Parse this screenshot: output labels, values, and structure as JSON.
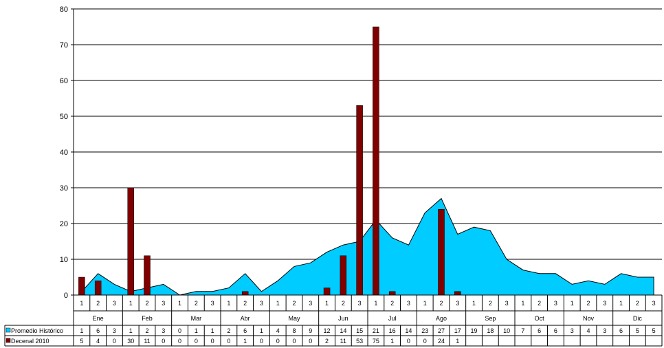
{
  "chart_data": {
    "type": "bar",
    "ylim": [
      0,
      80
    ],
    "yticks": [
      0,
      10,
      20,
      30,
      40,
      50,
      60,
      70,
      80
    ],
    "months": [
      "Ene",
      "Feb",
      "Mar",
      "Abr",
      "May",
      "Jun",
      "Jul",
      "Ago",
      "Sep",
      "Oct",
      "Nov",
      "Dic"
    ],
    "decades": [
      "1",
      "2",
      "3"
    ],
    "series": [
      {
        "name": "Promedio Histórico",
        "kind": "area",
        "color": "#00CCFF",
        "values": [
          1,
          6,
          3,
          1,
          2,
          3,
          0,
          1,
          1,
          2,
          6,
          1,
          4,
          8,
          9,
          12,
          14,
          15,
          21,
          16,
          14,
          23,
          27,
          17,
          19,
          18,
          10,
          7,
          6,
          6,
          3,
          4,
          3,
          6,
          5,
          5
        ],
        "labels": [
          "1",
          "6",
          "3",
          "1",
          "2",
          "3",
          "0",
          "1",
          "1",
          "2",
          "6",
          "1",
          "4",
          "8",
          "9",
          "12",
          "14",
          "15",
          "21",
          "16",
          "14",
          "23",
          "27",
          "17",
          "19",
          "18",
          "10",
          "7",
          "6",
          "6",
          "3",
          "4",
          "3",
          "6",
          "5",
          "5"
        ]
      },
      {
        "name": "Decenal 2010",
        "kind": "bar",
        "color": "#800000",
        "values": [
          5,
          4,
          0,
          30,
          11,
          0,
          0,
          0,
          0,
          0,
          1,
          0,
          0,
          0,
          0,
          2,
          11,
          53,
          75,
          1,
          0,
          0,
          24,
          1,
          null,
          null,
          null,
          null,
          null,
          null,
          null,
          null,
          null,
          null,
          null,
          null
        ],
        "labels": [
          "5",
          "4",
          "0",
          "30",
          "11",
          "0",
          "0",
          "0",
          "0",
          "0",
          "1",
          "0",
          "0",
          "0",
          "0",
          "2",
          "11",
          "53",
          "75",
          "1",
          "0",
          "0",
          "24",
          "1",
          "",
          "",
          "",
          "",
          "",
          "",
          "",
          "",
          "",
          "",
          "",
          ""
        ]
      }
    ]
  }
}
